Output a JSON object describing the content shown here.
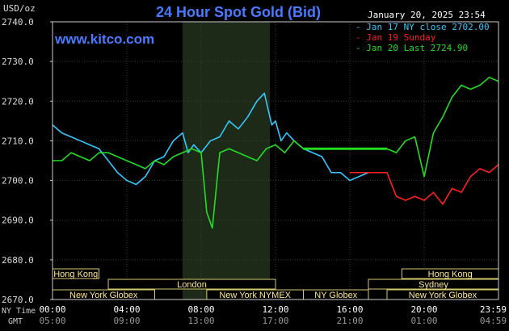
{
  "header": {
    "title": "24 Hour Spot Gold (Bid)",
    "timestamp": "January 20, 2025 23:54",
    "site": "www.kitco.com",
    "unit_label": "USD/oz"
  },
  "legend": [
    {
      "text": "- Jan 17 NY close 2702.00",
      "color": "#33c8ff"
    },
    {
      "text": "- Jan 19 Sunday",
      "color": "#ff2020"
    },
    {
      "text": "- Jan 20 Last 2724.90",
      "color": "#22dd22"
    }
  ],
  "axes": {
    "y_ticks": [
      "2740.0",
      "2730.0",
      "2720.0",
      "2710.0",
      "2700.0",
      "2690.0",
      "2680.0",
      "2670.0"
    ],
    "ny_time_label": "NY Time",
    "gmt_label": "GMT",
    "ny_ticks": [
      "00:00",
      "04:00",
      "08:00",
      "12:00",
      "16:00",
      "20:00",
      "23:59"
    ],
    "gmt_ticks": [
      "05:00",
      "09:00",
      "13:00",
      "17:00",
      "21:00",
      "01:00",
      "04:59"
    ]
  },
  "sessions": [
    {
      "label": "Hong Kong",
      "row": 0,
      "start": 0.0,
      "end": 2.5
    },
    {
      "label": "Hong Kong",
      "row": 0,
      "start": 18.8,
      "end": 24.0
    },
    {
      "label": "London",
      "row": 1,
      "start": 3.0,
      "end": 12.0
    },
    {
      "label": "Sydney",
      "row": 1,
      "start": 17.0,
      "end": 24.0
    },
    {
      "label": "New York Globex",
      "row": 2,
      "start": 0.0,
      "end": 5.5
    },
    {
      "label": "New York NYMEX",
      "row": 2,
      "start": 8.3,
      "end": 13.5
    },
    {
      "label": "NY Globex",
      "row": 2,
      "start": 13.5,
      "end": 17.0
    },
    {
      "label": "New York Globex",
      "row": 2,
      "start": 18.0,
      "end": 24.0
    }
  ],
  "chart_data": {
    "type": "line",
    "title": "24 Hour Spot Gold (Bid)",
    "ylabel": "USD/oz",
    "xlabel": "NY Time",
    "xlim": [
      0,
      24
    ],
    "ylim": [
      2670,
      2740
    ],
    "grid": true,
    "legend_position": "top-right",
    "highlight_region": {
      "start": 7.0,
      "end": 11.7
    },
    "series": [
      {
        "name": "Jan 17 NY close 2702.00",
        "color": "#33c8ff",
        "x": [
          0,
          0.5,
          1.0,
          1.5,
          2.0,
          2.5,
          3.0,
          3.5,
          4.0,
          4.5,
          5.0,
          5.5,
          6.0,
          6.5,
          7.0,
          7.3,
          7.6,
          8.0,
          8.5,
          9.0,
          9.5,
          10.0,
          10.5,
          11.0,
          11.4,
          11.8,
          12.0,
          12.3,
          12.6,
          13.0,
          13.5,
          14.0,
          14.5,
          15.0,
          15.5,
          16.0,
          16.5,
          17.0
        ],
        "values": [
          2714,
          2712,
          2711,
          2710,
          2709,
          2708,
          2705,
          2702,
          2700,
          2699,
          2701,
          2705,
          2706,
          2710,
          2712,
          2707,
          2709,
          2707,
          2710,
          2711,
          2715,
          2713,
          2716,
          2720,
          2722,
          2714,
          2715,
          2710,
          2712,
          2710,
          2708,
          2707,
          2706,
          2702,
          2702,
          2700,
          2701,
          2702
        ]
      },
      {
        "name": "Jan 19 Sunday",
        "color": "#ff2020",
        "x": [
          16.0,
          16.5,
          17.0,
          17.5,
          18.0,
          18.5,
          19.0,
          19.5,
          20.0,
          20.5,
          21.0,
          21.5,
          22.0,
          22.5,
          23.0,
          23.5,
          24.0
        ],
        "values": [
          2702,
          2702,
          2702,
          2702,
          2702,
          2696,
          2695,
          2696,
          2695,
          2697,
          2694,
          2698,
          2697,
          2701,
          2703,
          2702,
          2704
        ]
      },
      {
        "name": "Jan 20 Last 2724.90",
        "color": "#22dd22",
        "x": [
          0,
          0.5,
          1.0,
          1.5,
          2.0,
          2.5,
          3.0,
          3.5,
          4.0,
          4.5,
          5.0,
          5.5,
          6.0,
          6.5,
          7.0,
          7.5,
          8.0,
          8.3,
          8.6,
          9.0,
          9.5,
          10.0,
          10.5,
          11.0,
          11.5,
          12.0,
          12.5,
          13.0,
          13.5,
          14.0,
          15.0,
          16.0,
          17.0,
          18.0,
          18.5,
          19.0,
          19.5,
          20.0,
          20.5,
          21.0,
          21.5,
          22.0,
          22.5,
          23.0,
          23.5,
          24.0
        ],
        "values": [
          2705,
          2705,
          2707,
          2706,
          2705,
          2707,
          2707,
          2706,
          2705,
          2704,
          2703,
          2705,
          2704,
          2706,
          2707,
          2708,
          2707,
          2692,
          2688,
          2707,
          2708,
          2707,
          2706,
          2705,
          2708,
          2709,
          2707,
          2710,
          2708,
          2708,
          2708,
          2708,
          2708,
          2708,
          2707,
          2710,
          2711,
          2701,
          2712,
          2716,
          2721,
          2724,
          2723,
          2724,
          2726,
          2725
        ]
      }
    ]
  }
}
